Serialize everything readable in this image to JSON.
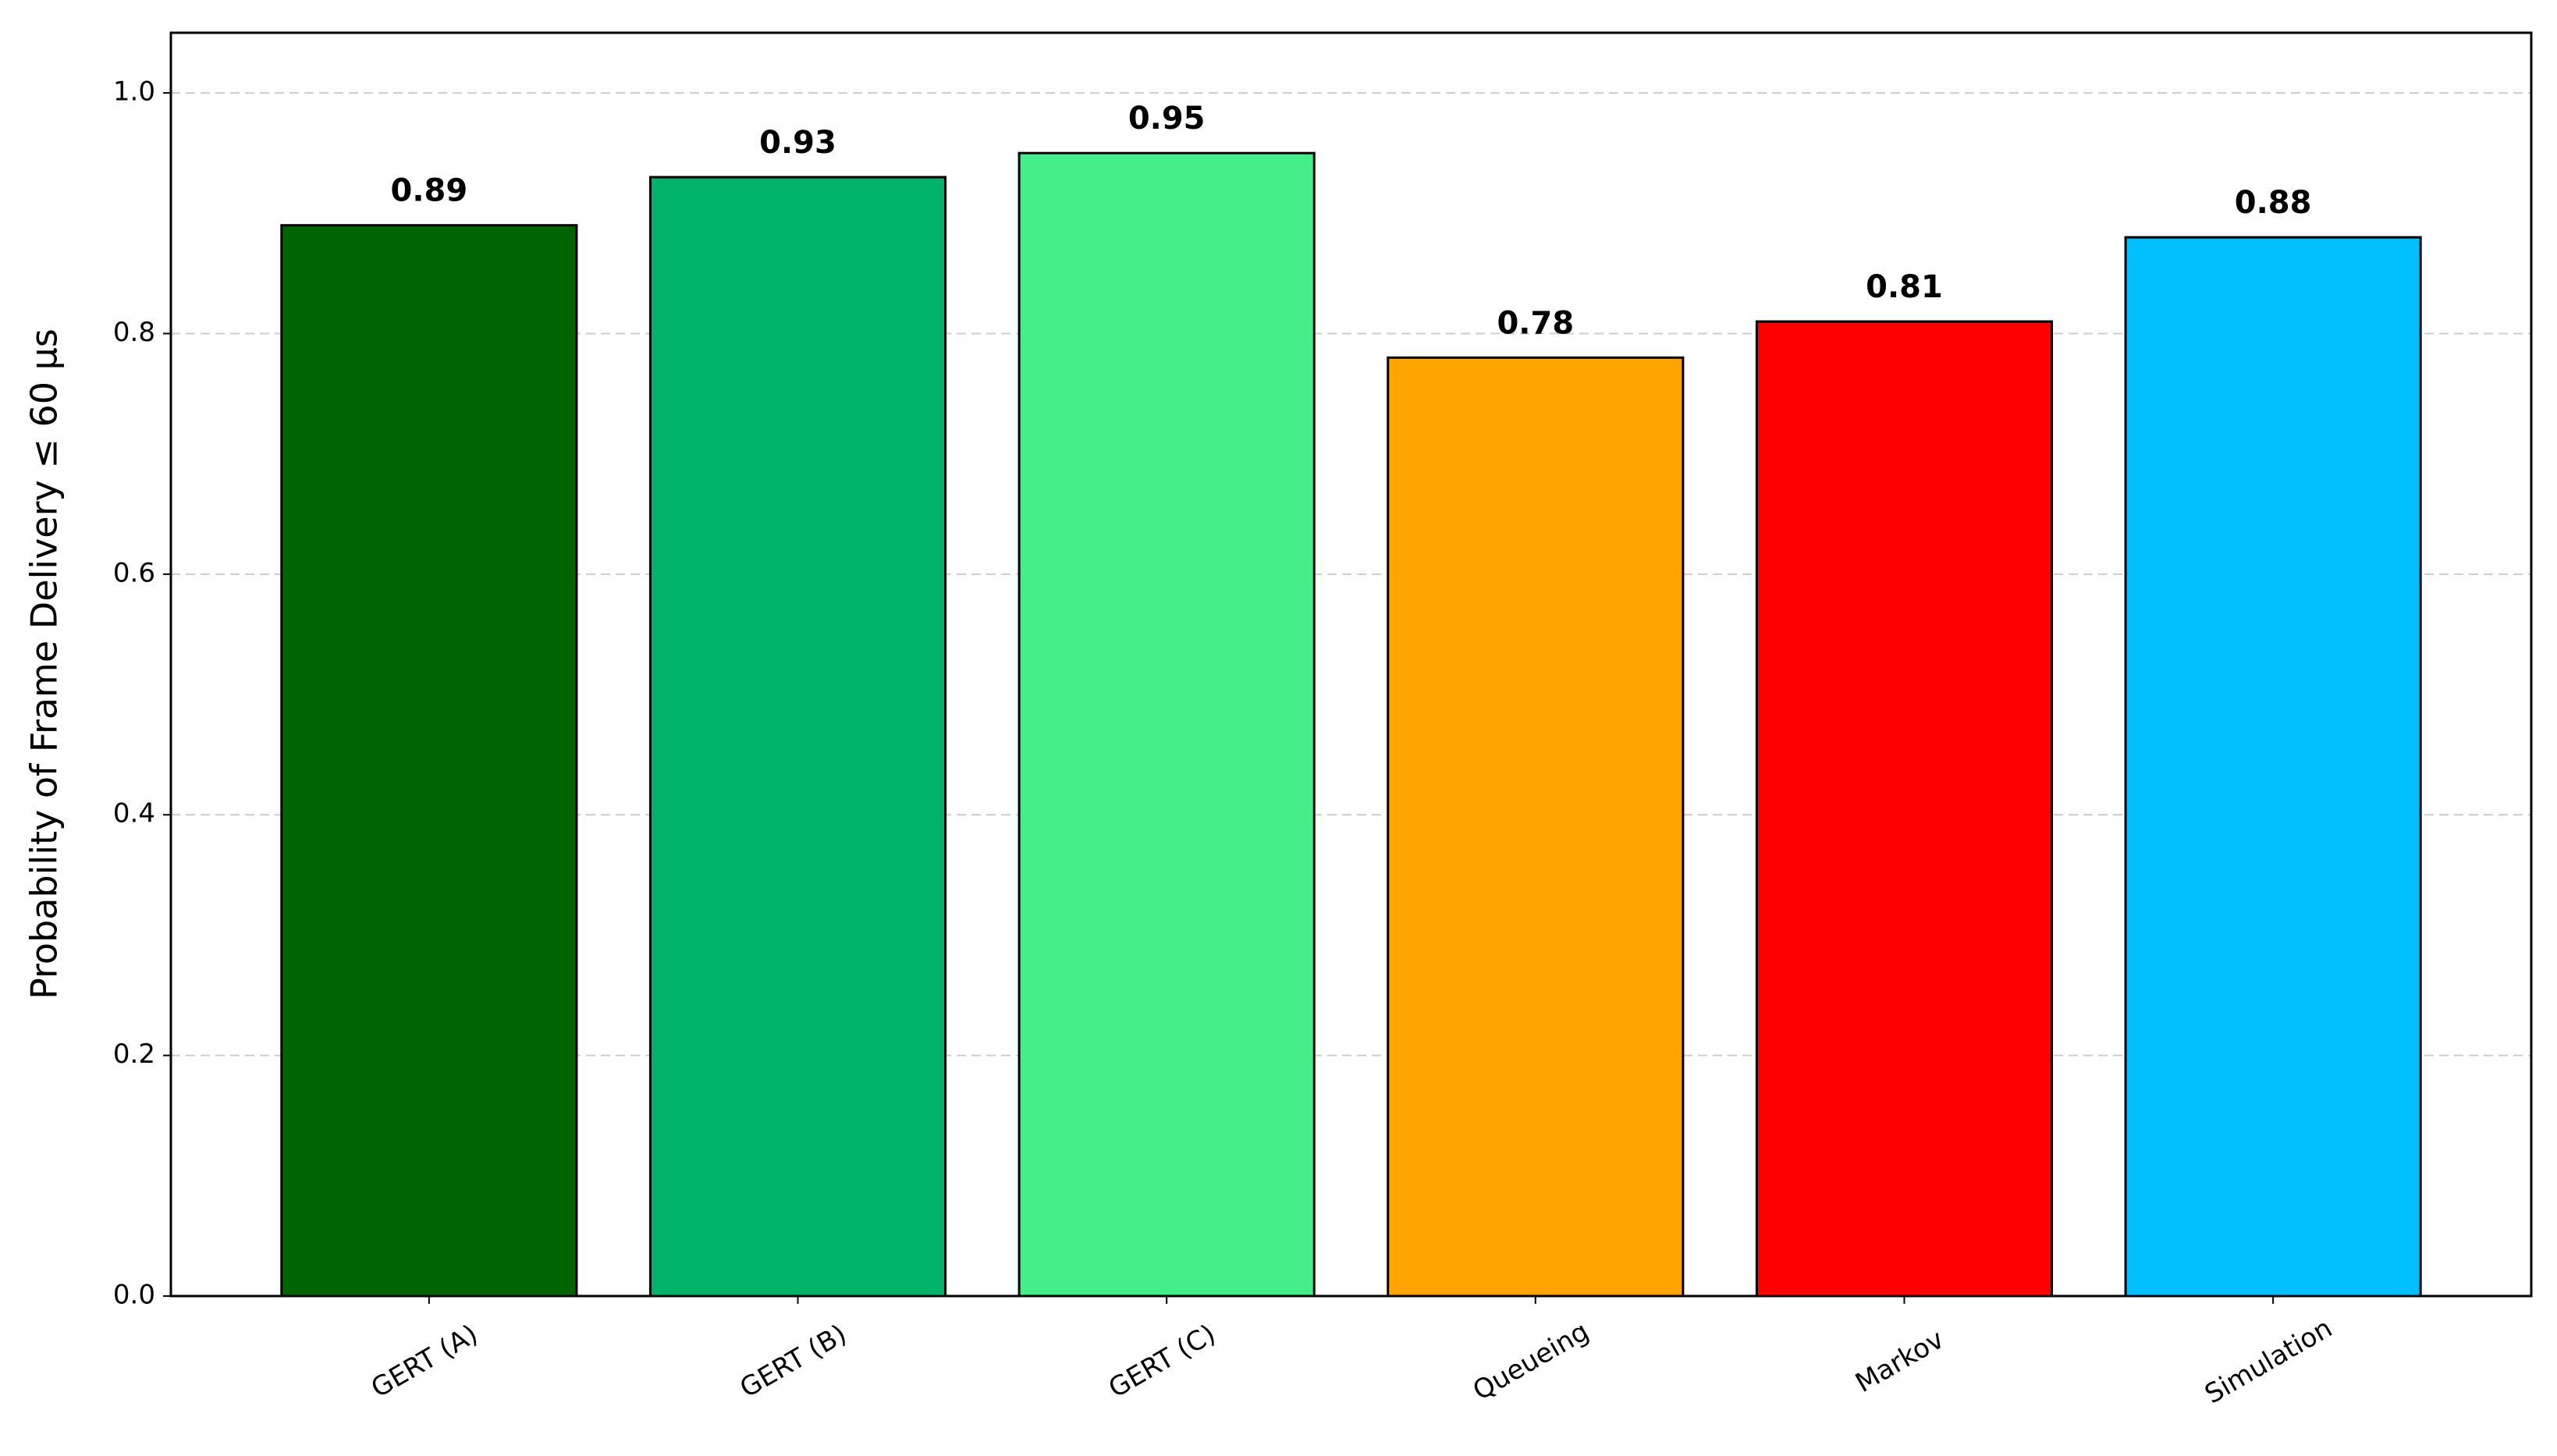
{
  "chart_data": {
    "type": "bar",
    "y_label": "Probability of Frame Delivery ≤ 60 μs",
    "categories": [
      "GERT (A)",
      "GERT (B)",
      "GERT (C)",
      "Queueing",
      "Markov",
      "Simulation"
    ],
    "values": [
      0.89,
      0.93,
      0.95,
      0.78,
      0.81,
      0.88
    ],
    "colors": [
      "#006400",
      "#00b36b",
      "#44ee88",
      "#ffa500",
      "#ff0000",
      "#00bfff"
    ],
    "ylim": [
      0,
      1.05
    ],
    "yticks": [
      {
        "value": 0,
        "label": "0.0"
      },
      {
        "value": 0.2,
        "label": "0.2"
      },
      {
        "value": 0.4,
        "label": "0.4"
      },
      {
        "value": 0.6,
        "label": "0.6"
      },
      {
        "value": 0.8,
        "label": "0.8"
      },
      {
        "value": 1,
        "label": "1.0"
      }
    ],
    "grid": true
  }
}
